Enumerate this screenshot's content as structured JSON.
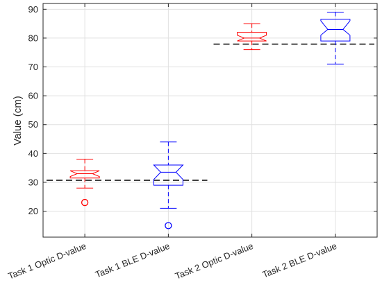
{
  "chart_data": {
    "type": "box",
    "title": "",
    "xlabel": "",
    "ylabel": "Value (cm)",
    "ylim": [
      11,
      92
    ],
    "yticks": [
      20,
      30,
      40,
      50,
      60,
      70,
      80,
      90
    ],
    "grid": true,
    "categories": [
      "Task 1 Optic D-value",
      "Task 1  BLE D-value",
      "Task 2 Optic D-value",
      "Task 2 BLE D-value"
    ],
    "boxes": [
      {
        "color": "#ff0000",
        "q1": 31.5,
        "median": 33,
        "q3": 34,
        "notch_low": 32,
        "notch_high": 34,
        "whisker_low": 28,
        "whisker_high": 38,
        "outliers": [
          23
        ]
      },
      {
        "color": "#0000ff",
        "q1": 29,
        "median": 33.5,
        "q3": 36,
        "notch_low": 31,
        "notch_high": 36,
        "whisker_low": 21,
        "whisker_high": 44,
        "outliers": [
          15
        ]
      },
      {
        "color": "#ff0000",
        "q1": 79,
        "median": 80,
        "q3": 82,
        "notch_low": 79,
        "notch_high": 81,
        "whisker_low": 76,
        "whisker_high": 85,
        "outliers": []
      },
      {
        "color": "#0000ff",
        "q1": 79,
        "median": 83,
        "q3": 86.5,
        "notch_low": 81,
        "notch_high": 86,
        "whisker_low": 71,
        "whisker_high": 89,
        "outliers": []
      }
    ],
    "reference_lines": [
      {
        "y": 30.7,
        "from_category": 0,
        "to_category": 1,
        "style": "dashed",
        "color": "#000000"
      },
      {
        "y": 77.9,
        "from_category": 2,
        "to_category": 3,
        "style": "dashed",
        "color": "#000000"
      }
    ]
  }
}
